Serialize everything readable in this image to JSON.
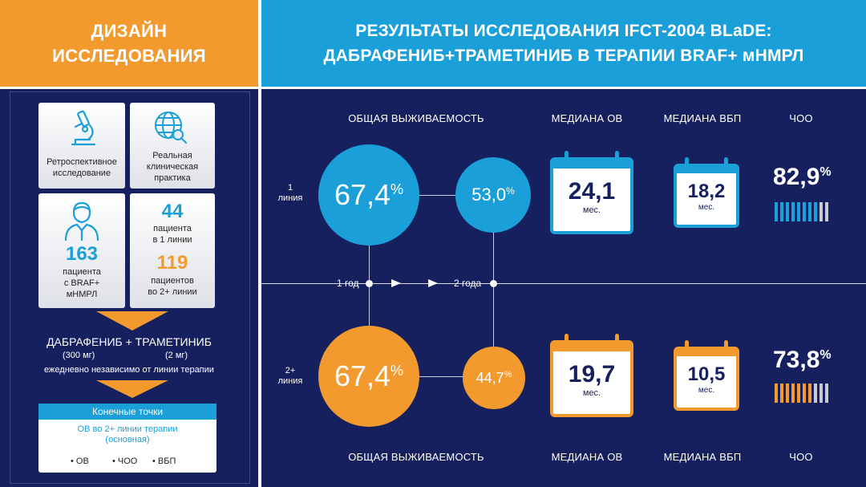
{
  "header_left": {
    "line1": "ДИЗАЙН",
    "line2": "ИССЛЕДОВАНИЯ"
  },
  "header_right": {
    "line1": "РЕЗУЛЬТАТЫ ИССЛЕДОВАНИЯ IFCT-2004 BLaDE:",
    "line2": "ДАБРАФЕНИБ+ТРАМЕТИНИБ В ТЕРАПИИ BRAF+ мНМРЛ"
  },
  "design": {
    "card1": {
      "l1": "Ретроспективное",
      "l2": "исследование",
      "icon": "microscope-icon"
    },
    "card2": {
      "l1": "Реальная",
      "l2": "клиническая",
      "l3": "практика",
      "icon": "globe-search-icon"
    },
    "card3": {
      "num": "163",
      "l1": "пациента",
      "l2": "с BRAF+",
      "l3": "мНМРЛ",
      "icon": "patient-icon"
    },
    "card4": {
      "num1": "44",
      "a1": "пациента",
      "a2": "в 1 линии",
      "num2": "119",
      "b1": "пациентов",
      "b2": "во 2+ линии"
    },
    "treatment": {
      "title": "ДАБРАФЕНИБ + ТРАМЕТИНИБ",
      "dose1": "(300 мг)",
      "dose2": "(2 мг)",
      "note": "ежедневно независимо от линии терапии"
    },
    "endpoints": {
      "title": "Конечные точки",
      "primary1": "ОВ во 2+ линии терапии",
      "primary2": "(основная)",
      "items": [
        "• ОВ",
        "• ЧОО",
        "• ВБП"
      ]
    }
  },
  "results": {
    "col_os": "ОБЩАЯ ВЫЖИВАЕМОСТЬ",
    "col_median_os": "МЕДИАНА ОВ",
    "col_median_pfs": "МЕДИАНА ВБП",
    "col_orr": "ЧОО",
    "timeline": {
      "year1": "1 год",
      "year2": "2 года"
    },
    "line1": {
      "label1": "1",
      "label2": "линия",
      "os1": "67,4",
      "os2": "53,0",
      "median_os": "24,1",
      "median_pfs": "18,2",
      "unit": "мес.",
      "orr": "82,9",
      "pct": "%",
      "orr_value": 82.9
    },
    "line2": {
      "label1": "2+",
      "label2": "линия",
      "os1": "67,4",
      "os2": "44,7",
      "median_os": "19,7",
      "median_pfs": "10,5",
      "unit": "мес.",
      "orr": "73,8",
      "pct": "%",
      "orr_value": 73.8
    }
  },
  "colors": {
    "blue": "#1b9fd9",
    "orange": "#f29a2e",
    "navy": "#16205f"
  }
}
